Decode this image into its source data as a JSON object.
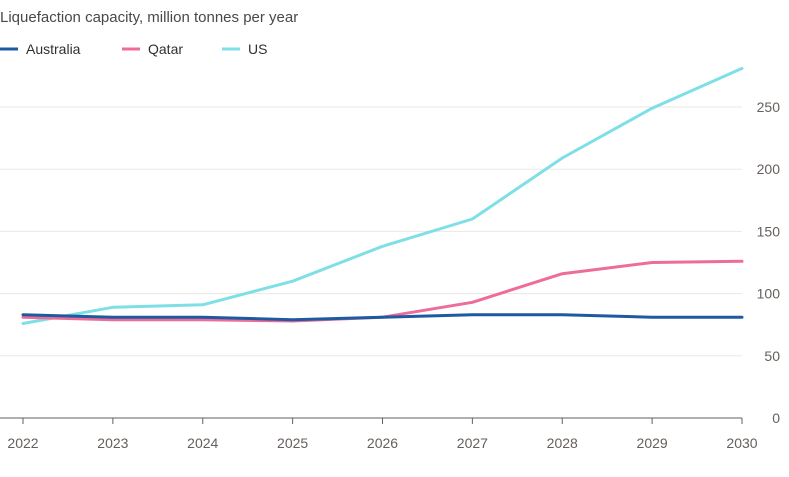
{
  "chart_data": {
    "type": "line",
    "title": "Liquefaction capacity, million tonnes per year",
    "x": [
      "2022",
      "2023",
      "2024",
      "2025",
      "2026",
      "2027",
      "2028",
      "2029",
      "2030"
    ],
    "ylim": [
      0,
      290
    ],
    "yticks": [
      0,
      50,
      100,
      150,
      200,
      250
    ],
    "grid": true,
    "legend_position": "top-left",
    "series": [
      {
        "name": "Australia",
        "color": "#1e5aa0",
        "values": [
          83,
          81,
          81,
          79,
          81,
          83,
          83,
          81,
          81
        ]
      },
      {
        "name": "Qatar",
        "color": "#ed6c9a",
        "values": [
          81,
          79,
          79,
          78,
          81,
          93,
          116,
          125,
          126
        ]
      },
      {
        "name": "US",
        "color": "#7fdfe6",
        "values": [
          76,
          89,
          91,
          110,
          138,
          160,
          209,
          249,
          281
        ]
      }
    ]
  }
}
